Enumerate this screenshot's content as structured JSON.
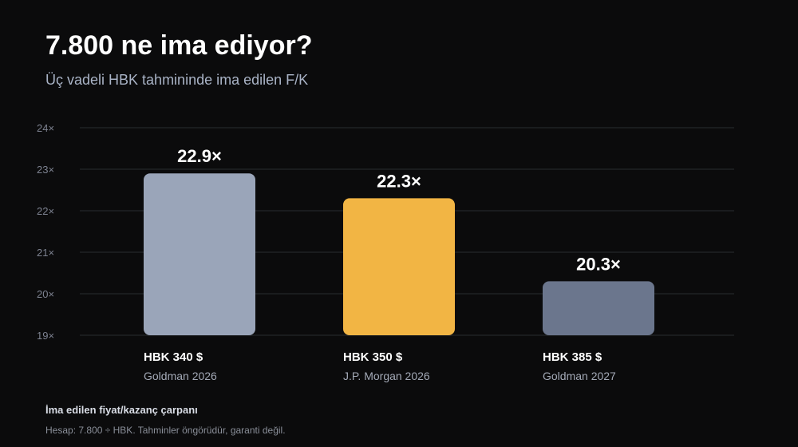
{
  "chart_data": {
    "type": "bar",
    "title": "7.800 ne ima ediyor?",
    "subtitle": "Üç vadeli HBK tahmininde ima edilen F/K",
    "categories": [
      "HBK 340 $",
      "HBK 350 $",
      "HBK 385 $"
    ],
    "sublabels": [
      "Goldman 2026",
      "J.P. Morgan 2026",
      "Goldman 2027"
    ],
    "values": [
      22.9,
      22.3,
      20.3
    ],
    "value_labels": [
      "22.9×",
      "22.3×",
      "20.3×"
    ],
    "colors": [
      "#9aa5b9",
      "#f2b544",
      "#6b768d"
    ],
    "ylim": [
      19,
      24
    ],
    "yticks": [
      19,
      20,
      21,
      22,
      23,
      24
    ],
    "ytick_labels": [
      "19×",
      "20×",
      "21×",
      "22×",
      "23×",
      "24×"
    ],
    "grid": true
  },
  "footer": {
    "title": "İma edilen fiyat/kazanç çarpanı",
    "note": "Hesap: 7.800 ÷ HBK. Tahminler öngörüdür, garanti değil."
  }
}
